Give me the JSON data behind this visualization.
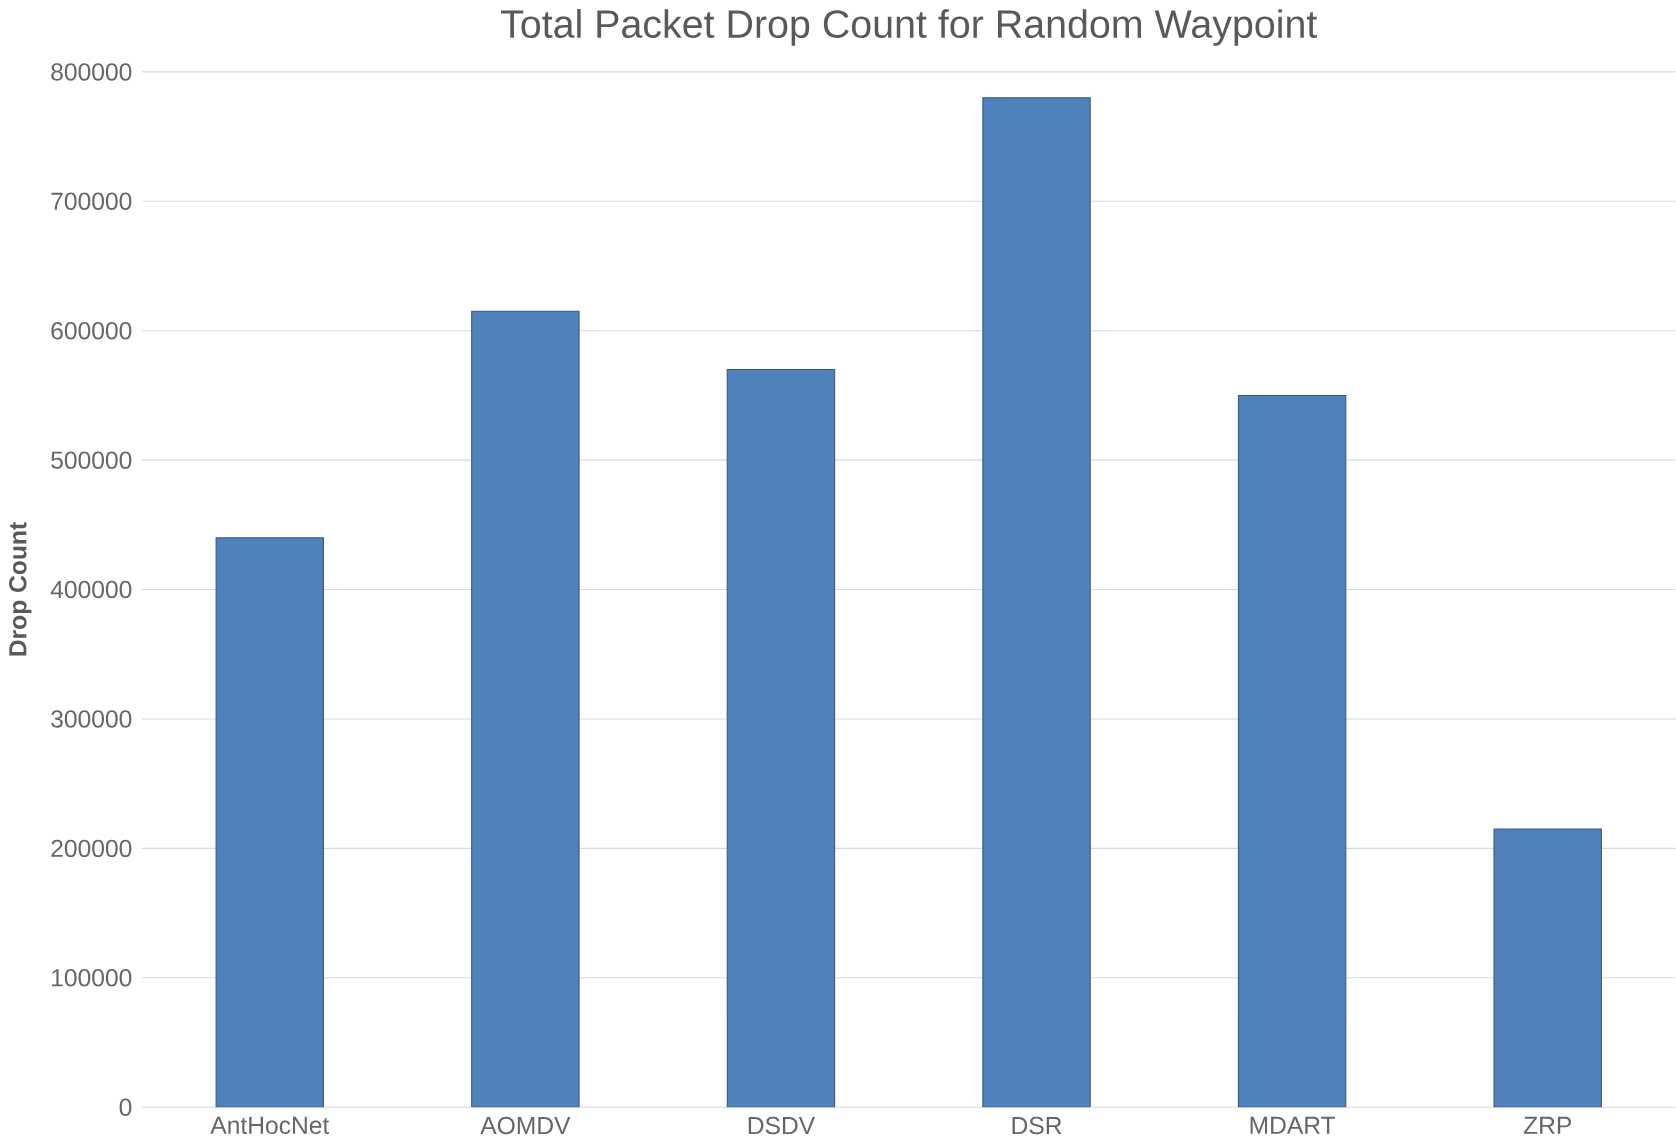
{
  "chart_data": {
    "type": "bar",
    "title": "Total Packet Drop Count for Random Waypoint",
    "ylabel": "Drop Count",
    "categories": [
      "AntHocNet",
      "AOMDV",
      "DSDV",
      "DSR",
      "MDART",
      "ZRP"
    ],
    "values": [
      440000,
      615000,
      570000,
      780000,
      550000,
      215000
    ],
    "color": "#4f81bd",
    "ylim": [
      0,
      800000
    ],
    "yticks": [
      0,
      100000,
      200000,
      300000,
      400000,
      500000,
      600000,
      700000,
      800000
    ],
    "grid": "y"
  }
}
